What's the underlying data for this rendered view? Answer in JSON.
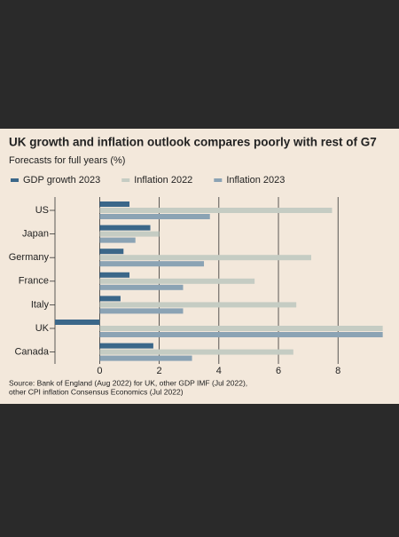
{
  "chart_data": {
    "type": "bar",
    "orientation": "horizontal",
    "title": "UK growth and inflation outlook compares poorly with rest of G7",
    "subtitle": "Forecasts for full years (%)",
    "categories": [
      "US",
      "Japan",
      "Germany",
      "France",
      "Italy",
      "UK",
      "Canada"
    ],
    "series": [
      {
        "name": "GDP growth 2023",
        "color": "#3b6789",
        "values": [
          1.0,
          1.7,
          0.8,
          1.0,
          0.7,
          -1.5,
          1.8
        ]
      },
      {
        "name": "Inflation 2022",
        "color": "#c5ccc3",
        "values": [
          7.8,
          2.0,
          7.1,
          5.2,
          6.6,
          9.5,
          6.5
        ]
      },
      {
        "name": "Inflation 2023",
        "color": "#8ba3b4",
        "values": [
          3.7,
          1.2,
          3.5,
          2.8,
          2.8,
          9.5,
          3.1
        ]
      }
    ],
    "xlim": [
      -1.5,
      9.6
    ],
    "xticks": [
      0,
      2,
      4,
      6,
      8
    ],
    "grid": true,
    "source": [
      "Source: Bank of England (Aug 2022) for UK, other GDP IMF (Jul 2022),",
      "other CPI inflation Consensus Economics (Jul 2022)"
    ]
  }
}
